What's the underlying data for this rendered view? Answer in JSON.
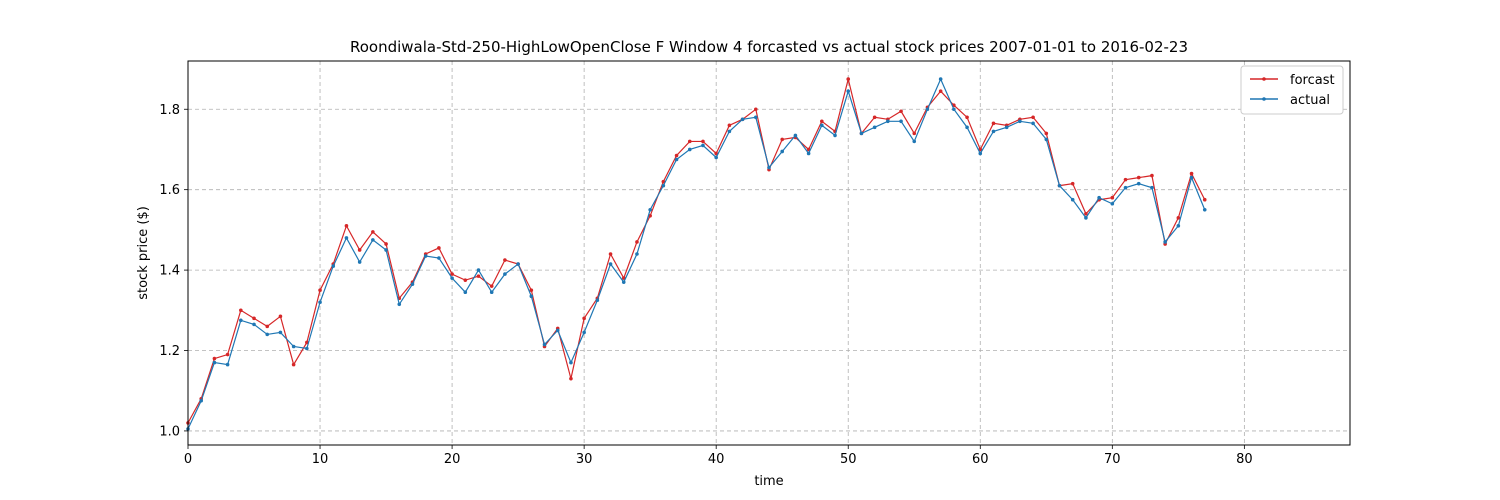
{
  "chart_data": {
    "type": "line",
    "title": "Roondiwala-Std-250-HighLowOpenClose F Window 4 forcasted vs actual stock prices 2007-01-01 to 2016-02-23",
    "xlabel": "time",
    "ylabel": "stock price ($)",
    "xlim": [
      0,
      88
    ],
    "ylim": [
      0.965,
      1.92
    ],
    "xticks": [
      0,
      10,
      20,
      30,
      40,
      50,
      60,
      70,
      80
    ],
    "yticks": [
      1.0,
      1.2,
      1.4,
      1.6,
      1.8
    ],
    "xtick_labels": [
      "0",
      "10",
      "20",
      "30",
      "40",
      "50",
      "60",
      "70",
      "80"
    ],
    "ytick_labels": [
      "1.0",
      "1.2",
      "1.4",
      "1.6",
      "1.8"
    ],
    "grid": true,
    "legend_position": "top-right",
    "series": [
      {
        "name": "forcast",
        "color": "#d62728",
        "values": [
          1.02,
          1.08,
          1.18,
          1.19,
          1.3,
          1.28,
          1.26,
          1.285,
          1.165,
          1.22,
          1.35,
          1.415,
          1.51,
          1.45,
          1.495,
          1.465,
          1.33,
          1.37,
          1.44,
          1.455,
          1.39,
          1.375,
          1.385,
          1.36,
          1.425,
          1.415,
          1.35,
          1.21,
          1.255,
          1.13,
          1.28,
          1.33,
          1.44,
          1.38,
          1.47,
          1.535,
          1.62,
          1.685,
          1.72,
          1.72,
          1.69,
          1.76,
          1.775,
          1.8,
          1.65,
          1.725,
          1.73,
          1.7,
          1.77,
          1.745,
          1.875,
          1.74,
          1.78,
          1.775,
          1.795,
          1.74,
          1.805,
          1.845,
          1.81,
          1.78,
          1.7,
          1.765,
          1.76,
          1.775,
          1.78,
          1.74,
          1.61,
          1.615,
          1.54,
          1.575,
          1.58,
          1.625,
          1.63,
          1.635,
          1.465,
          1.53,
          1.64,
          1.575
        ]
      },
      {
        "name": "actual",
        "color": "#1f77b4",
        "values": [
          1.005,
          1.075,
          1.17,
          1.165,
          1.275,
          1.265,
          1.24,
          1.245,
          1.21,
          1.205,
          1.32,
          1.41,
          1.48,
          1.42,
          1.475,
          1.45,
          1.315,
          1.365,
          1.435,
          1.43,
          1.38,
          1.345,
          1.4,
          1.345,
          1.39,
          1.415,
          1.335,
          1.215,
          1.25,
          1.17,
          1.245,
          1.325,
          1.415,
          1.37,
          1.44,
          1.55,
          1.61,
          1.675,
          1.7,
          1.71,
          1.68,
          1.745,
          1.775,
          1.78,
          1.655,
          1.695,
          1.735,
          1.69,
          1.76,
          1.735,
          1.845,
          1.74,
          1.755,
          1.77,
          1.77,
          1.72,
          1.8,
          1.875,
          1.8,
          1.755,
          1.69,
          1.745,
          1.755,
          1.77,
          1.765,
          1.725,
          1.61,
          1.575,
          1.53,
          1.58,
          1.565,
          1.605,
          1.615,
          1.605,
          1.47,
          1.51,
          1.63,
          1.55
        ]
      }
    ]
  }
}
